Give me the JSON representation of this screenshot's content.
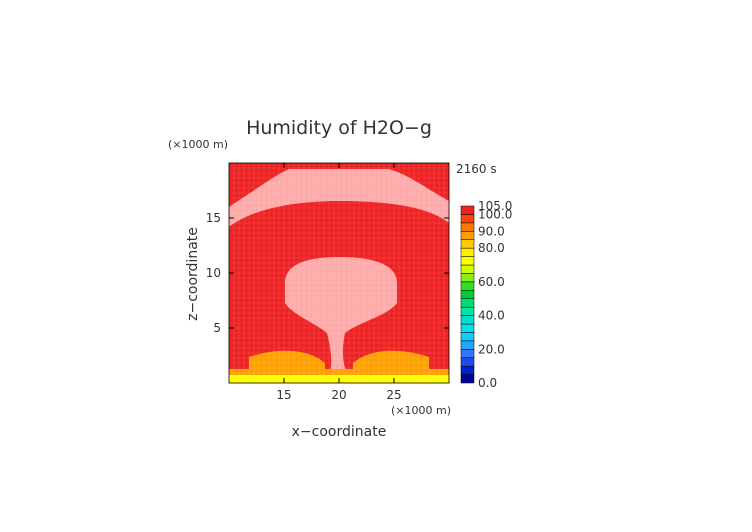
{
  "chart_data": {
    "type": "heatmap",
    "title": "Humidity of H2O−g",
    "time_label": "2160 s",
    "xlabel": "x−coordinate",
    "ylabel": "z−coordinate",
    "x_unit": "(×1000 m)",
    "y_unit": "(×1000 m)",
    "xlim": [
      10,
      30
    ],
    "ylim": [
      0,
      20
    ],
    "x_ticks": [
      15,
      20,
      25
    ],
    "y_ticks": [
      5,
      10,
      15
    ],
    "grid": true,
    "colorbar": {
      "levels": [
        {
          "value": 0,
          "color": "#00009a"
        },
        {
          "value": 5,
          "color": "#0022cc"
        },
        {
          "value": 10,
          "color": "#1a4ee6"
        },
        {
          "value": 15,
          "color": "#3377ff"
        },
        {
          "value": 20,
          "color": "#22a6ff"
        },
        {
          "value": 25,
          "color": "#11ccff"
        },
        {
          "value": 30,
          "color": "#00e0ee"
        },
        {
          "value": 35,
          "color": "#00ddcc"
        },
        {
          "value": 40,
          "color": "#00e6aa"
        },
        {
          "value": 45,
          "color": "#00dd77"
        },
        {
          "value": 50,
          "color": "#00cc33"
        },
        {
          "value": 55,
          "color": "#33dd22"
        },
        {
          "value": 60,
          "color": "#88ee11"
        },
        {
          "value": 65,
          "color": "#ccff00"
        },
        {
          "value": 70,
          "color": "#ffff00"
        },
        {
          "value": 75,
          "color": "#ffee00"
        },
        {
          "value": 80,
          "color": "#ffc800"
        },
        {
          "value": 85,
          "color": "#ffa000"
        },
        {
          "value": 90,
          "color": "#ff7700"
        },
        {
          "value": 95,
          "color": "#ff4400"
        },
        {
          "value": 100,
          "color": "#ee2222"
        },
        {
          "value": 105,
          "color": "#ffffff"
        }
      ],
      "tick_labels": [
        "0.0",
        "20.0",
        "40.0",
        "60.0",
        "80.0",
        "90.0",
        "100.0",
        "105.0"
      ]
    },
    "field_colors": {
      "saturated": "#ee2222",
      "supersaturated": "#ffaaaa",
      "surface": "#ffff00",
      "surface_orange": "#ffa000"
    }
  }
}
